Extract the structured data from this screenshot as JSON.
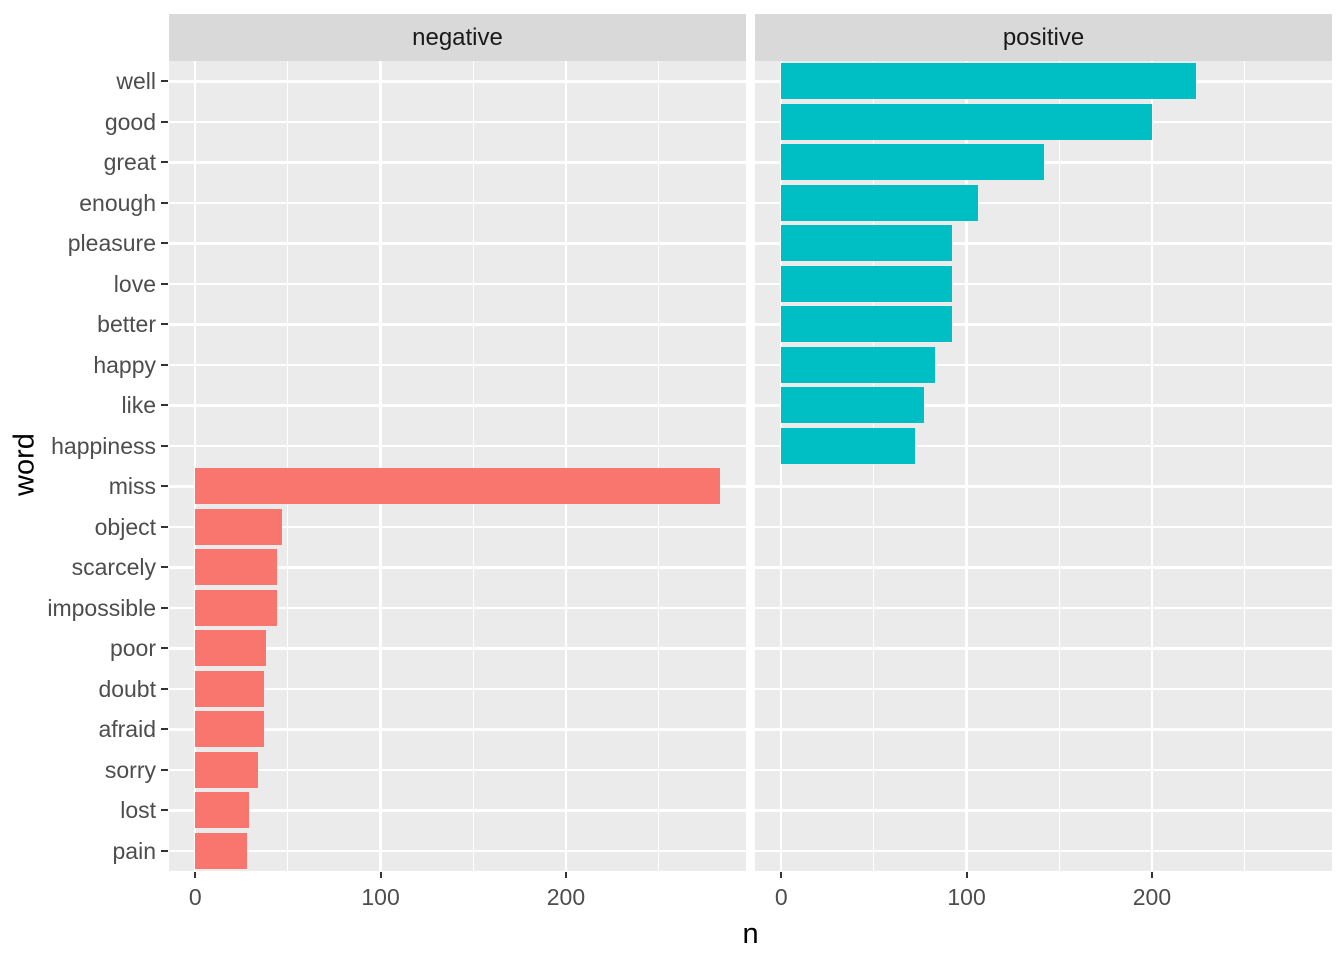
{
  "chart_data": {
    "type": "bar",
    "orientation": "horizontal",
    "title": "",
    "xlabel": "n",
    "ylabel": "word",
    "facets": [
      "negative",
      "positive"
    ],
    "categories": [
      "well",
      "good",
      "great",
      "enough",
      "pleasure",
      "love",
      "better",
      "happy",
      "like",
      "happiness",
      "miss",
      "object",
      "scarcely",
      "impossible",
      "poor",
      "doubt",
      "afraid",
      "sorry",
      "lost",
      "pain"
    ],
    "series": [
      {
        "name": "negative",
        "color": "#F8766D",
        "values": [
          null,
          null,
          null,
          null,
          null,
          null,
          null,
          null,
          null,
          null,
          283,
          47,
          44,
          44,
          38,
          37,
          37,
          34,
          29,
          28
        ]
      },
      {
        "name": "positive",
        "color": "#00BFC4",
        "values": [
          224,
          200,
          142,
          106,
          92,
          92,
          92,
          83,
          77,
          72,
          null,
          null,
          null,
          null,
          null,
          null,
          null,
          null,
          null,
          null
        ]
      }
    ],
    "x_ticks": [
      0,
      100,
      200
    ],
    "x_minor_ticks": [
      50,
      150,
      250
    ],
    "xlim": [
      -14.15,
      297.15
    ],
    "grid": "major horizontal + major/minor vertical, white on grey panel",
    "legend": "none",
    "colors": {
      "panel_background": "#EBEBEB",
      "strip_background": "#D9D9D9",
      "grid": "#FFFFFF",
      "axis_text": "#4D4D4D",
      "strip_text": "#1A1A1A",
      "axis_title": "#000000",
      "tick_mark": "#333333",
      "negative_bar": "#F8766D",
      "positive_bar": "#00BFC4"
    }
  }
}
